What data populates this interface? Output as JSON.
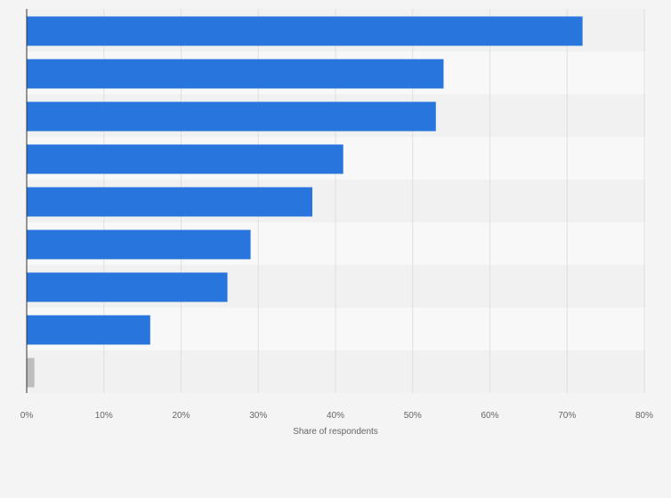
{
  "chart_data": {
    "type": "bar",
    "orientation": "horizontal",
    "categories": [
      "",
      "",
      "",
      "",
      "",
      "",
      "",
      "",
      ""
    ],
    "values": [
      72,
      54,
      53,
      41,
      37,
      29,
      26,
      16,
      1
    ],
    "bar_colors": [
      "#2876dd",
      "#2876dd",
      "#2876dd",
      "#2876dd",
      "#2876dd",
      "#2876dd",
      "#2876dd",
      "#2876dd",
      "#bebebe"
    ],
    "xlabel": "Share of respondents",
    "ylabel": "",
    "xlim": [
      0,
      80
    ],
    "x_ticks": [
      0,
      10,
      20,
      30,
      40,
      50,
      60,
      70,
      80
    ],
    "x_tick_labels": [
      "0%",
      "10%",
      "20%",
      "30%",
      "40%",
      "50%",
      "60%",
      "70%",
      "80%"
    ],
    "grid": true,
    "legend": "none"
  },
  "colors": {
    "background": "#f4f4f4",
    "band_dark": "#f1f1f1",
    "band_light": "#f8f8f8",
    "grid": "#e0e0e0",
    "axis": "#333333",
    "bar": "#2876dd",
    "bar_other": "#bebebe",
    "text": "#666666"
  }
}
